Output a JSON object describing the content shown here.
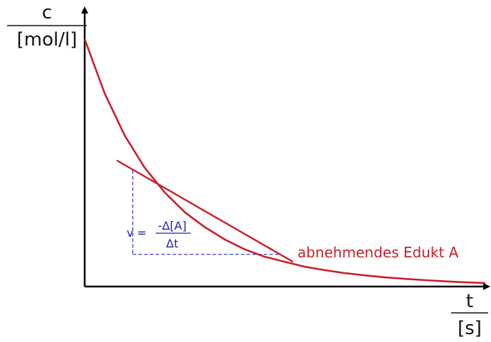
{
  "chart_data": {
    "type": "line",
    "title": "",
    "xlabel": "t",
    "xunit": "[s]",
    "ylabel": "c",
    "yunit": "[mol/l]",
    "ticks": "none",
    "grid": false,
    "series": [
      {
        "name": "abnehmendes Edukt A",
        "x": [
          0,
          0.05,
          0.1,
          0.15,
          0.2,
          0.25,
          0.3,
          0.35,
          0.4,
          0.45,
          0.5,
          0.55,
          0.6,
          0.65,
          0.7,
          0.75,
          0.8,
          0.85,
          0.9,
          0.95,
          1.0
        ],
        "y": [
          1.0,
          0.78,
          0.61,
          0.48,
          0.38,
          0.3,
          0.24,
          0.19,
          0.15,
          0.12,
          0.1,
          0.08,
          0.066,
          0.054,
          0.045,
          0.037,
          0.031,
          0.026,
          0.021,
          0.017,
          0.014
        ]
      }
    ],
    "tangent": {
      "x0": 0.08,
      "y0": 0.51,
      "x1": 0.52,
      "y1": 0.1
    },
    "difference_triangle": {
      "x_left": 0.12,
      "x_right": 0.49,
      "y_top": 0.47,
      "y_bottom": 0.13
    },
    "formula": {
      "lhs": "v =",
      "numerator": "-Δ[A]",
      "denominator": "Δt"
    },
    "colors": {
      "curve": "#c8202a",
      "axes": "#000000",
      "formula": "#1f1fa8",
      "triangle": "#3b3bd0"
    }
  }
}
